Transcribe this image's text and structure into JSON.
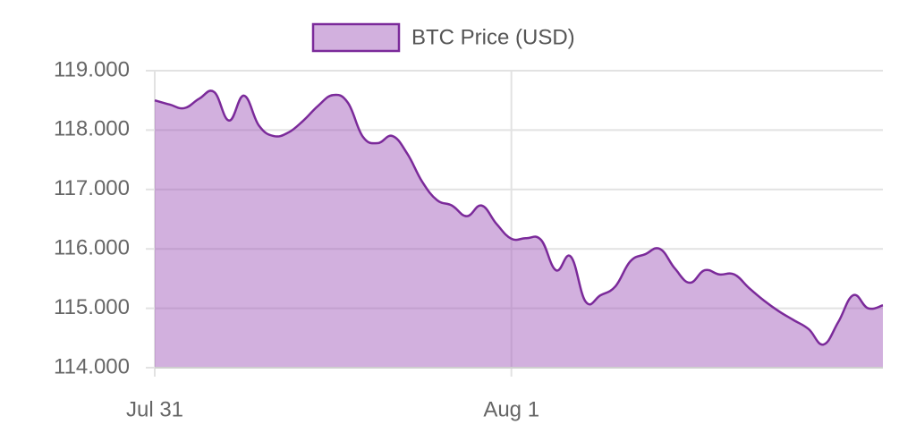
{
  "chart_data": {
    "type": "area",
    "categories": [
      "Jul 31",
      null,
      null,
      null,
      null,
      null,
      null,
      null,
      null,
      null,
      null,
      null,
      null,
      null,
      null,
      null,
      null,
      null,
      null,
      null,
      null,
      null,
      null,
      null,
      "Aug 1",
      null,
      null,
      null,
      null,
      null,
      null,
      null,
      null,
      null,
      null,
      null,
      null,
      null,
      null,
      null,
      null,
      null,
      null,
      null,
      null,
      null,
      null,
      null,
      null,
      null
    ],
    "series": [
      {
        "name": "BTC Price (USD)",
        "color": "#7b2a9a",
        "fill": "rgba(160, 90, 185, 0.48)",
        "values": [
          118500,
          118430,
          118370,
          118530,
          118640,
          118160,
          118580,
          118080,
          117900,
          117960,
          118160,
          118410,
          118590,
          118460,
          117890,
          117780,
          117900,
          117600,
          117130,
          116820,
          116730,
          116550,
          116730,
          116420,
          116170,
          116180,
          116150,
          115640,
          115870,
          115110,
          115220,
          115370,
          115790,
          115910,
          116000,
          115670,
          115430,
          115640,
          115570,
          115570,
          115340,
          115130,
          114950,
          114800,
          114650,
          114390,
          114770,
          115220,
          115000,
          115050
        ]
      }
    ],
    "ylim": [
      114000,
      119000
    ],
    "yticks": [
      {
        "value": 114000,
        "label": "114.000"
      },
      {
        "value": 115000,
        "label": "115.000"
      },
      {
        "value": 116000,
        "label": "116.000"
      },
      {
        "value": 117000,
        "label": "117.000"
      },
      {
        "value": 118000,
        "label": "118.000"
      },
      {
        "value": 119000,
        "label": "119.000"
      }
    ],
    "grid": true,
    "legend": "top"
  }
}
